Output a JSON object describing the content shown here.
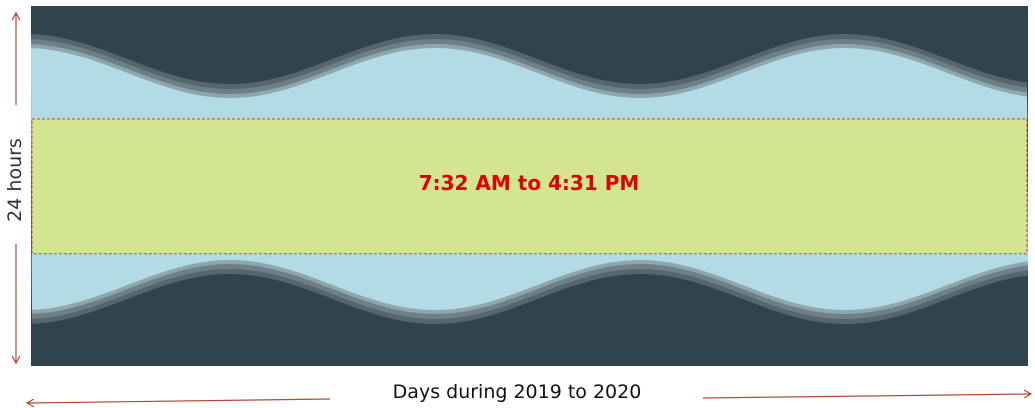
{
  "chart_data": {
    "type": "area",
    "xlabel": "Days during 2019 to 2020",
    "ylabel": "24 hours",
    "annotation": "7:32 AM to 4:31 PM",
    "highlight_band": {
      "start_hour": 7.53,
      "end_hour": 16.52
    },
    "grid": false,
    "legend": "none",
    "colors": {
      "night": "#2f444d",
      "twilight_dark": "#55666d",
      "twilight_mid": "#6d8088",
      "twilight_light": "#8fa6ae",
      "daylight": "#b2dbe6",
      "highlight": "#d3e68e",
      "highlight_border": "#d23c3c",
      "annotation_text": "#e00000",
      "arrow": "#b24a34"
    }
  }
}
